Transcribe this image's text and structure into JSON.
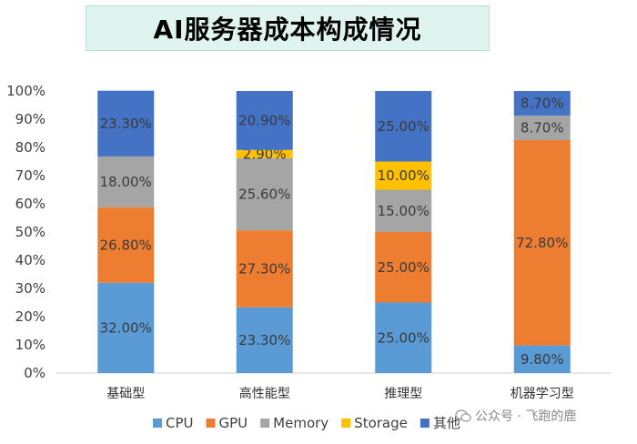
{
  "chart_data": {
    "type": "bar",
    "stacked": true,
    "title": "AI服务器成本构成情况",
    "categories": [
      "基础型",
      "高性能型",
      "推理型",
      "机器学习型"
    ],
    "y_ticks": [
      "0%",
      "10%",
      "20%",
      "30%",
      "40%",
      "50%",
      "60%",
      "70%",
      "80%",
      "90%",
      "100%"
    ],
    "ylim": [
      0,
      100
    ],
    "grid": false,
    "legend_position": "bottom",
    "series": [
      {
        "name": "CPU",
        "color": "#5b9bd5",
        "values": [
          32.0,
          23.3,
          25.0,
          9.8
        ],
        "labels": [
          "32.00%",
          "23.30%",
          "25.00%",
          "9.80%"
        ]
      },
      {
        "name": "GPU",
        "color": "#ed7d31",
        "values": [
          26.8,
          27.3,
          25.0,
          72.8
        ],
        "labels": [
          "26.80%",
          "27.30%",
          "25.00%",
          "72.80%"
        ]
      },
      {
        "name": "Memory",
        "color": "#a5a5a5",
        "values": [
          18.0,
          25.6,
          15.0,
          8.7
        ],
        "labels": [
          "18.00%",
          "25.60%",
          "15.00%",
          "8.70%"
        ]
      },
      {
        "name": "Storage",
        "color": "#ffc000",
        "values": [
          0,
          2.9,
          10.0,
          0
        ],
        "labels": [
          "",
          "2.90%",
          "10.00%",
          ""
        ]
      },
      {
        "name": "其他",
        "color": "#4472c4",
        "values": [
          23.3,
          20.9,
          25.0,
          8.7
        ],
        "labels": [
          "23.30%",
          "20.90%",
          "25.00%",
          "8.70%"
        ]
      }
    ]
  },
  "watermark": {
    "text": "公众号 · 飞跑的鹿"
  }
}
